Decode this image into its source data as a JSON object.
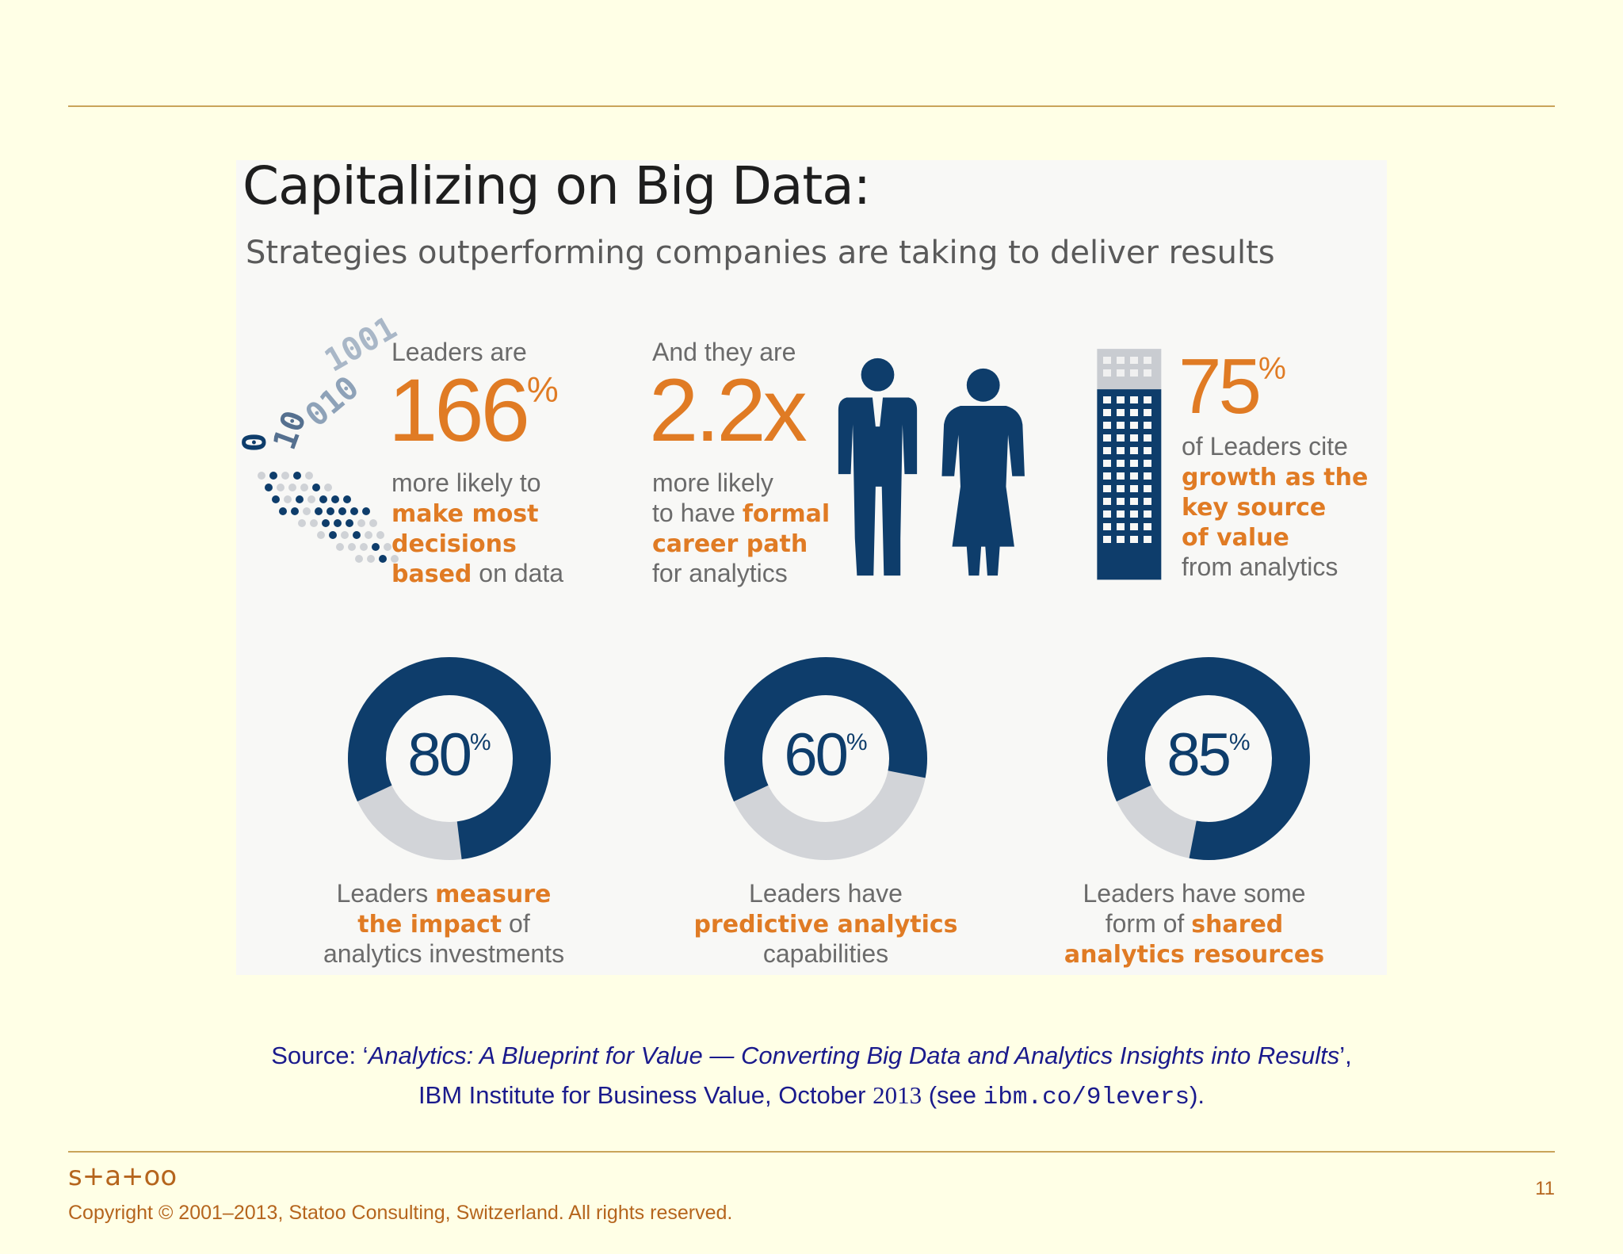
{
  "slide": {
    "infographic": {
      "title": "Capitalizing on Big Data:",
      "subtitle": "Strategies outperforming companies are taking to deliver results",
      "decor_digits": [
        "1001",
        "010",
        "10",
        "0"
      ],
      "colors": {
        "filled": "#0e3d6b",
        "empty": "#d2d4d8",
        "accent": "#e07b24",
        "text": "#6b6b6b"
      },
      "stats": [
        {
          "intro": "Leaders are",
          "figure": 166,
          "unit": "%",
          "lines": [
            [
              {
                "text": "more likely to"
              }
            ],
            [
              {
                "text": "make most",
                "style": "emphasis"
              }
            ],
            [
              {
                "text": "decisions",
                "style": "emphasis"
              }
            ],
            [
              {
                "text": "based",
                "style": "emphasis"
              },
              {
                "text": " on data"
              }
            ]
          ]
        },
        {
          "intro": "And they are",
          "figure": "2.2x",
          "lines": [
            [
              {
                "text": "more likely"
              }
            ],
            [
              {
                "text": "to have "
              },
              {
                "text": "formal",
                "style": "emphasis"
              }
            ],
            [
              {
                "text": "career path",
                "style": "emphasis"
              }
            ],
            [
              {
                "text": "for analytics"
              }
            ]
          ]
        },
        {
          "figure": 75,
          "unit": "%",
          "lines": [
            [
              {
                "text": "of Leaders cite"
              }
            ],
            [
              {
                "text": "growth as the",
                "style": "emphasis"
              }
            ],
            [
              {
                "text": "key source",
                "style": "emphasis"
              }
            ],
            [
              {
                "text": "of value",
                "style": "emphasis"
              }
            ],
            [
              {
                "text": "from analytics"
              }
            ]
          ]
        }
      ],
      "donuts": [
        {
          "number": 80,
          "unit": "%",
          "lines": [
            [
              {
                "text": "Leaders "
              },
              {
                "text": "measure",
                "style": "emphasis"
              }
            ],
            [
              {
                "text": "the impact",
                "style": "emphasis"
              },
              {
                "text": " of"
              }
            ],
            [
              {
                "text": "analytics investments"
              }
            ]
          ]
        },
        {
          "number": 60,
          "unit": "%",
          "lines": [
            [
              {
                "text": "Leaders have"
              }
            ],
            [
              {
                "text": "predictive analytics",
                "style": "emphasis"
              }
            ],
            [
              {
                "text": "capabilities"
              }
            ]
          ]
        },
        {
          "number": 85,
          "unit": "%",
          "lines": [
            [
              {
                "text": "Leaders have some"
              }
            ],
            [
              {
                "text": "form of "
              },
              {
                "text": "shared",
                "style": "emphasis"
              }
            ],
            [
              {
                "text": "analytics resources",
                "style": "emphasis"
              }
            ]
          ]
        }
      ]
    },
    "source": {
      "lines": [
        [
          {
            "text": "Source: ‘"
          },
          {
            "text": "Analytics: A Blueprint for Value — Converting Big Data and Analytics Insights into Results",
            "style": "italic"
          },
          {
            "text": "’,"
          }
        ],
        [
          {
            "text": "IBM Institute for Business Value, October "
          },
          {
            "text": "2013",
            "style": "serif"
          },
          {
            "text": " (see "
          },
          {
            "text": "ibm.co/9levers",
            "style": "mono"
          },
          {
            "text": ")."
          }
        ]
      ]
    },
    "footer": {
      "logo": "s+a+oo",
      "copyright": "Copyright © 2001–2013, Statoo Consulting, Switzerland. All rights reserved.",
      "page": "11"
    }
  }
}
